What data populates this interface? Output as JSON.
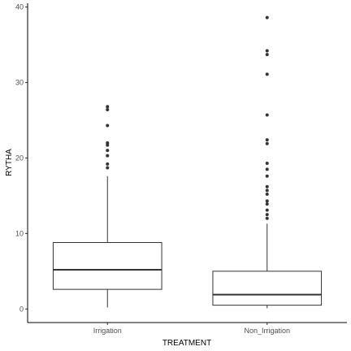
{
  "chart_data": {
    "type": "box",
    "xlabel": "TREATMENT",
    "ylabel": "RYTHA",
    "categories": [
      "Irrigation",
      "Non_Irrigation"
    ],
    "ylim": [
      -1.8,
      40.5
    ],
    "yticks": [
      0,
      10,
      20,
      30,
      40
    ],
    "grid": false,
    "boxes": [
      {
        "category": "Irrigation",
        "min": 0.2,
        "q1": 2.6,
        "median": 5.2,
        "q3": 8.8,
        "max": 17.6,
        "outliers": [
          18.7,
          19.2,
          20.3,
          21.0,
          21.7,
          22.0,
          24.3,
          26.4,
          26.8
        ]
      },
      {
        "category": "Non_Irrigation",
        "min": 0.1,
        "q1": 0.5,
        "median": 1.9,
        "q3": 5.0,
        "max": 11.3,
        "outliers": [
          12.0,
          12.5,
          13.1,
          13.9,
          14.3,
          15.2,
          15.7,
          16.2,
          17.6,
          18.5,
          19.3,
          21.9,
          22.4,
          25.7,
          31.1,
          33.7,
          34.2,
          38.6
        ]
      }
    ]
  }
}
